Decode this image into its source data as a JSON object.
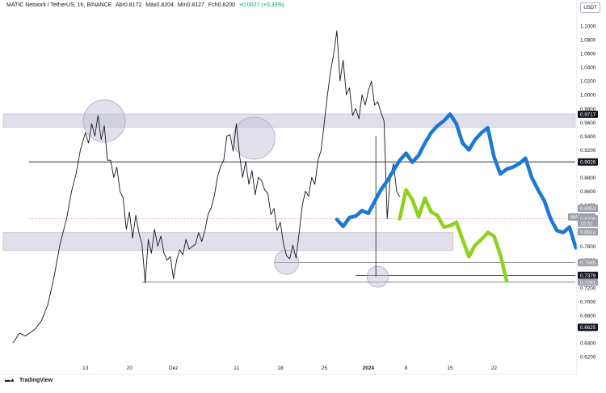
{
  "header": {
    "symbol": "MATIC Network / TetherUS, 1h, BINANCE",
    "open": "Abr0.8172",
    "high": "Máx0.8204",
    "low": "Mín0.8127",
    "close": "Fch0.8200",
    "change": "+0.0027 (+0.33%)"
  },
  "currency_label": "USDT",
  "branding": "TradingView",
  "colors": {
    "zone_fill": "#e1e0ea",
    "zone_border": "#b9b8c8",
    "blue_path": "#1c78d8",
    "green_path": "#8fd11f",
    "price_line": "#131722",
    "current_price_line": "#ef9a9a",
    "tag_dark": "#131722",
    "tag_grey": "#9c9fa8"
  },
  "chart_data": {
    "type": "line",
    "title": "MATIC Network / TetherUS, 1h, BINANCE",
    "xlabel": "",
    "ylabel": "",
    "ylim": [
      0.6,
      1.1
    ],
    "y_ticks": [
      "1.1000",
      "1.0800",
      "1.0600",
      "1.0400",
      "1.0200",
      "1.0000",
      "0.9800",
      "0.9600",
      "0.9400",
      "0.9200",
      "0.9000",
      "0.8800",
      "0.8600",
      "0.8400",
      "0.8200",
      "0.8000",
      "0.7800",
      "0.7600",
      "0.7400",
      "0.7200",
      "0.7000",
      "0.6800",
      "0.6600",
      "0.6400",
      "0.6200"
    ],
    "x_ticks": [
      {
        "day": 13,
        "label": "13"
      },
      {
        "day": 20,
        "label": "20"
      },
      {
        "day": 27,
        "label": "Dez"
      },
      {
        "day": 37,
        "label": "11"
      },
      {
        "day": 44,
        "label": "18"
      },
      {
        "day": 51,
        "label": "25"
      },
      {
        "day": 58,
        "label": "2024"
      },
      {
        "day": 64,
        "label": "8"
      },
      {
        "day": 71,
        "label": "15"
      },
      {
        "day": 78,
        "label": "22"
      }
    ],
    "price_tags": [
      {
        "label": "0.9717",
        "value": 0.9717,
        "style": "dark"
      },
      {
        "label": "0.9026",
        "value": 0.9026,
        "style": "dark"
      },
      {
        "label": "0.8353",
        "value": 0.8353,
        "style": "grey"
      },
      {
        "label": "MATICUSDT",
        "value": 0.8227,
        "style": "grey"
      },
      {
        "label": "0.8200",
        "value": 0.82,
        "style": "grey"
      },
      {
        "label": "15:52",
        "value": 0.8135,
        "style": "grey"
      },
      {
        "label": "0.8012",
        "value": 0.8012,
        "style": "grey"
      },
      {
        "label": "0.7565",
        "value": 0.7565,
        "style": "grey"
      },
      {
        "label": "0.7379",
        "value": 0.7379,
        "style": "dark"
      },
      {
        "label": "0.7281",
        "value": 0.7281,
        "style": "grey"
      },
      {
        "label": "0.6625",
        "value": 0.6625,
        "style": "dark"
      }
    ],
    "zones": [
      {
        "from": 0.953,
        "to": 0.972
      },
      {
        "from": 0.774,
        "to": 0.8
      }
    ],
    "levels": [
      {
        "value": 0.9026,
        "from_day": 4,
        "style": "solid"
      },
      {
        "value": 0.7565,
        "from_day": 43,
        "style": "thin"
      },
      {
        "value": 0.7379,
        "from_day": 56,
        "style": "solid"
      },
      {
        "value": 0.7281,
        "from_day": 22,
        "style": "thin"
      },
      {
        "value": 0.82,
        "from_day": 4,
        "style": "current"
      }
    ],
    "circles": [
      {
        "day": 16,
        "value": 0.962
      },
      {
        "day": 39.8,
        "value": 0.937
      },
      {
        "day": 45,
        "value": 0.757
      },
      {
        "day": 59.5,
        "value": 0.736
      }
    ],
    "series": [
      {
        "name": "MATICUSDT",
        "x": [
          1.5,
          2.5,
          3.5,
          5,
          6,
          7,
          8,
          9,
          10,
          10.8,
          11.5,
          12.2,
          13,
          13.5,
          14,
          14.5,
          15,
          15.5,
          16,
          16.5,
          17,
          17.5,
          18,
          18.5,
          19,
          19.5,
          20,
          20.5,
          21,
          21.5,
          22,
          22.5,
          23,
          23.5,
          24,
          24.5,
          25,
          25.5,
          26,
          26.5,
          27,
          27.5,
          28,
          28.5,
          29,
          29.5,
          30,
          30.5,
          31,
          31.5,
          32,
          32.5,
          33,
          33.5,
          34,
          34.5,
          35,
          35.5,
          36,
          36.5,
          37,
          37.5,
          38,
          38.5,
          39,
          39.5,
          40,
          40.5,
          41,
          41.5,
          42,
          42.5,
          43,
          43.5,
          44,
          44.5,
          45,
          45.5,
          46,
          46.5,
          47,
          47.5,
          48,
          48.5,
          49,
          49.5,
          50,
          50.5,
          51,
          51.5,
          52,
          52.5,
          53,
          53.5,
          54,
          54.5,
          55,
          55.5,
          56,
          56.5,
          57,
          57.5,
          58,
          58.5,
          59,
          59.5,
          60,
          60.5,
          61,
          61.5,
          62,
          62.5,
          63
        ],
        "values": [
          0.64,
          0.654,
          0.65,
          0.66,
          0.672,
          0.695,
          0.735,
          0.785,
          0.82,
          0.86,
          0.885,
          0.92,
          0.945,
          0.93,
          0.958,
          0.94,
          0.97,
          0.935,
          0.955,
          0.905,
          0.905,
          0.88,
          0.895,
          0.86,
          0.85,
          0.805,
          0.83,
          0.792,
          0.825,
          0.8,
          0.783,
          0.727,
          0.79,
          0.77,
          0.805,
          0.78,
          0.795,
          0.77,
          0.76,
          0.765,
          0.733,
          0.76,
          0.775,
          0.768,
          0.79,
          0.776,
          0.78,
          0.783,
          0.8,
          0.787,
          0.803,
          0.826,
          0.836,
          0.853,
          0.88,
          0.896,
          0.905,
          0.94,
          0.942,
          0.918,
          0.958,
          0.913,
          0.88,
          0.903,
          0.87,
          0.89,
          0.855,
          0.88,
          0.876,
          0.862,
          0.857,
          0.826,
          0.835,
          0.803,
          0.815,
          0.784,
          0.766,
          0.762,
          0.782,
          0.763,
          0.8,
          0.84,
          0.86,
          0.853,
          0.88,
          0.87,
          0.905,
          0.92,
          0.96,
          1.0,
          1.035,
          1.06,
          1.093,
          1.02,
          1.05,
          1.0,
          1.01,
          0.97,
          0.98,
          0.965,
          1.0,
          0.985,
          1.005,
          1.02,
          0.985,
          0.99,
          0.975,
          0.962,
          0.82,
          0.88,
          0.9,
          0.86,
          0.852
        ]
      },
      {
        "name": "",
        "x": [
          53,
          54,
          55,
          56,
          57,
          58,
          59,
          60,
          61,
          62,
          63,
          64,
          65,
          66,
          67,
          68,
          69,
          70,
          71,
          72,
          73,
          74,
          75,
          76,
          77,
          78,
          79,
          80,
          81,
          82,
          83,
          84,
          85,
          86,
          87,
          88,
          89,
          90,
          91
        ],
        "values": [
          0.819,
          0.809,
          0.822,
          0.824,
          0.832,
          0.828,
          0.845,
          0.862,
          0.875,
          0.89,
          0.905,
          0.915,
          0.902,
          0.912,
          0.93,
          0.945,
          0.955,
          0.962,
          0.972,
          0.958,
          0.93,
          0.92,
          0.935,
          0.945,
          0.952,
          0.91,
          0.885,
          0.892,
          0.895,
          0.9,
          0.908,
          0.88,
          0.862,
          0.846,
          0.82,
          0.803,
          0.8,
          0.808,
          0.778
        ]
      },
      {
        "name": "",
        "x": [
          63,
          64,
          65,
          66,
          67,
          68,
          69,
          70,
          71,
          72,
          73,
          74,
          75,
          76,
          77,
          78,
          79,
          80
        ],
        "values": [
          0.82,
          0.862,
          0.848,
          0.823,
          0.85,
          0.83,
          0.825,
          0.808,
          0.81,
          0.815,
          0.79,
          0.765,
          0.782,
          0.79,
          0.8,
          0.795,
          0.768,
          0.73
        ]
      }
    ]
  }
}
